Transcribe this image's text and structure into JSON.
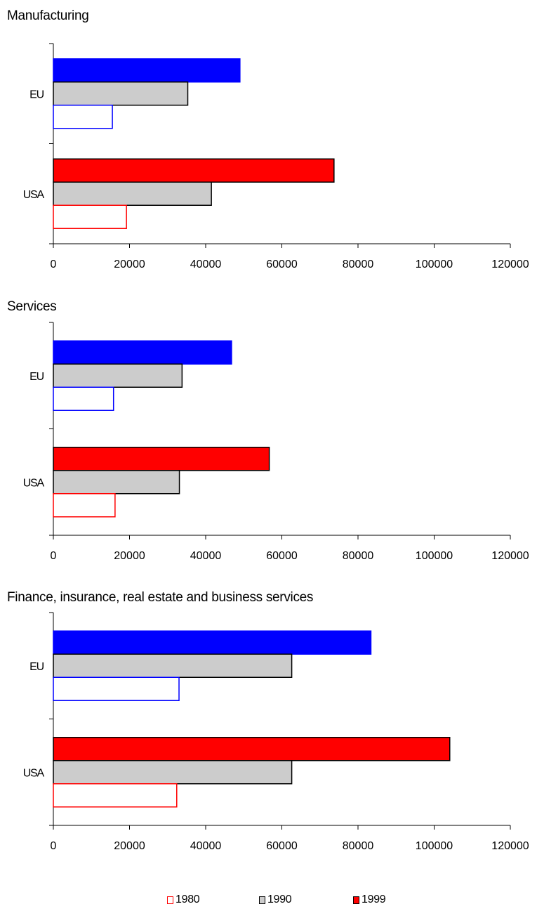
{
  "chart_data": [
    {
      "type": "bar",
      "orientation": "horizontal",
      "title": "Manufacturing",
      "categories": [
        "EU",
        "USA"
      ],
      "series": [
        {
          "name": "1980",
          "values": [
            15500,
            19200
          ]
        },
        {
          "name": "1990",
          "values": [
            35300,
            41500
          ]
        },
        {
          "name": "1999",
          "values": [
            49000,
            73700
          ]
        }
      ],
      "xlim": [
        0,
        120000
      ],
      "xticks": [
        "0",
        "20000",
        "40000",
        "60000",
        "80000",
        "100000",
        "120000"
      ],
      "grid": false
    },
    {
      "type": "bar",
      "orientation": "horizontal",
      "title": "Services",
      "categories": [
        "EU",
        "USA"
      ],
      "series": [
        {
          "name": "1980",
          "values": [
            15800,
            16200
          ]
        },
        {
          "name": "1990",
          "values": [
            33800,
            33100
          ]
        },
        {
          "name": "1999",
          "values": [
            46800,
            56700
          ]
        }
      ],
      "xlim": [
        0,
        120000
      ],
      "xticks": [
        "0",
        "20000",
        "40000",
        "60000",
        "80000",
        "100000",
        "120000"
      ],
      "grid": false
    },
    {
      "type": "bar",
      "orientation": "horizontal",
      "title": "Finance, insurance, real estate and business services",
      "categories": [
        "EU",
        "USA"
      ],
      "series": [
        {
          "name": "1980",
          "values": [
            33000,
            32400
          ]
        },
        {
          "name": "1990",
          "values": [
            62600,
            62600
          ]
        },
        {
          "name": "1999",
          "values": [
            83400,
            104100
          ]
        }
      ],
      "xlim": [
        0,
        120000
      ],
      "xticks": [
        "0",
        "20000",
        "40000",
        "60000",
        "80000",
        "100000",
        "120000"
      ],
      "grid": false
    }
  ],
  "colors": {
    "EU": "#0000ff",
    "USA": "#ff0000",
    "1990": "#cccccc",
    "outline": "#000000"
  },
  "legend": {
    "position": "bottom",
    "items": [
      {
        "label": "1980",
        "style": "outline-red"
      },
      {
        "label": "1990",
        "style": "gray-filled"
      },
      {
        "label": "1999",
        "style": "red-filled"
      }
    ]
  }
}
